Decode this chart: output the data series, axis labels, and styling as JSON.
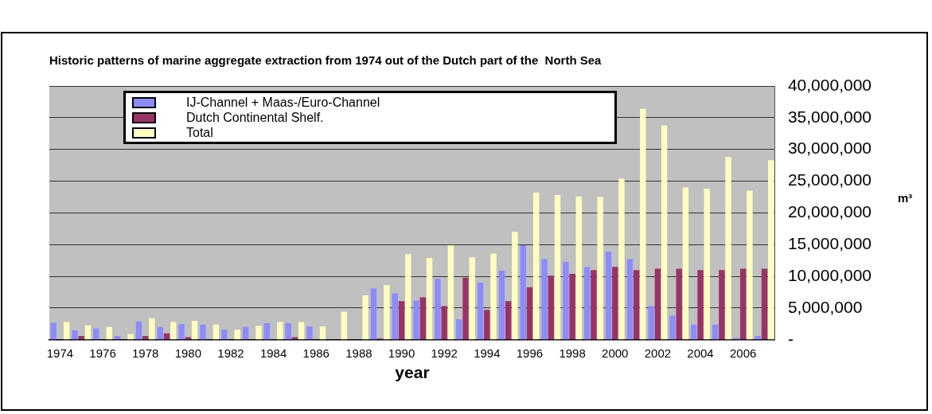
{
  "chart_data": {
    "type": "bar",
    "title": "Historic patterns of marine aggregate extraction from 1974 out of the Dutch part of the  North Sea",
    "xlabel": "year",
    "ylabel": "m³",
    "categories": [
      "1974",
      null,
      "1976",
      null,
      "1978",
      null,
      "1980",
      null,
      "1982",
      null,
      "1984",
      null,
      "1986",
      null,
      "1988",
      null,
      "1990",
      null,
      "1992",
      null,
      "1994",
      null,
      "1996",
      null,
      "1998",
      null,
      "2000",
      null,
      "2002",
      null,
      "2004",
      null,
      "2006",
      null
    ],
    "series": [
      {
        "name": "IJ-Channel + Maas-/Euro-Channel",
        "color": "#8c8cff",
        "values": [
          2700000,
          1500000,
          1800000,
          600000,
          2900000,
          2000000,
          2500000,
          2400000,
          1600000,
          2000000,
          2600000,
          2600000,
          2100000,
          0,
          0,
          8100000,
          7300000,
          6200000,
          9600000,
          3200000,
          9000000,
          10900000,
          14900000,
          12700000,
          12300000,
          11500000,
          13900000,
          12700000,
          5300000,
          3800000,
          2400000,
          2400000,
          300000,
          600000
        ]
      },
      {
        "name": "Dutch Continental Shelf.",
        "color": "#993366",
        "values": [
          0,
          600000,
          null,
          0,
          600000,
          1000000,
          400000,
          0,
          0,
          0,
          0,
          400000,
          0,
          0,
          0,
          200000,
          6100000,
          6700000,
          5300000,
          9800000,
          4700000,
          6100000,
          8300000,
          10100000,
          10400000,
          11000000,
          11500000,
          11000000,
          11200000,
          11200000,
          11000000,
          11000000,
          11200000,
          11200000
        ]
      },
      {
        "name": "Total",
        "color": "#ffffc0",
        "values": [
          2800000,
          2300000,
          2000000,
          900000,
          3400000,
          2800000,
          3000000,
          2400000,
          1600000,
          2200000,
          2800000,
          2800000,
          2100000,
          4400000,
          7000000,
          8600000,
          13500000,
          12900000,
          14900000,
          13000000,
          13600000,
          17000000,
          23200000,
          22800000,
          22600000,
          22500000,
          25400000,
          36400000,
          33800000,
          24000000,
          23800000,
          28800000,
          23500000,
          28300000
        ]
      }
    ],
    "ylim": [
      0,
      40000000
    ],
    "yticks": [
      {
        "value": 0,
        "label": "-"
      },
      {
        "value": 5000000,
        "label": "5,000,000"
      },
      {
        "value": 10000000,
        "label": "10,000,000"
      },
      {
        "value": 15000000,
        "label": "15,000,000"
      },
      {
        "value": 20000000,
        "label": "20,000,000"
      },
      {
        "value": 25000000,
        "label": "25,000,000"
      },
      {
        "value": 30000000,
        "label": "30,000,000"
      },
      {
        "value": 35000000,
        "label": "35,000,000"
      },
      {
        "value": 40000000,
        "label": "40,000,000"
      }
    ],
    "grid": "y",
    "legend": "top left"
  }
}
